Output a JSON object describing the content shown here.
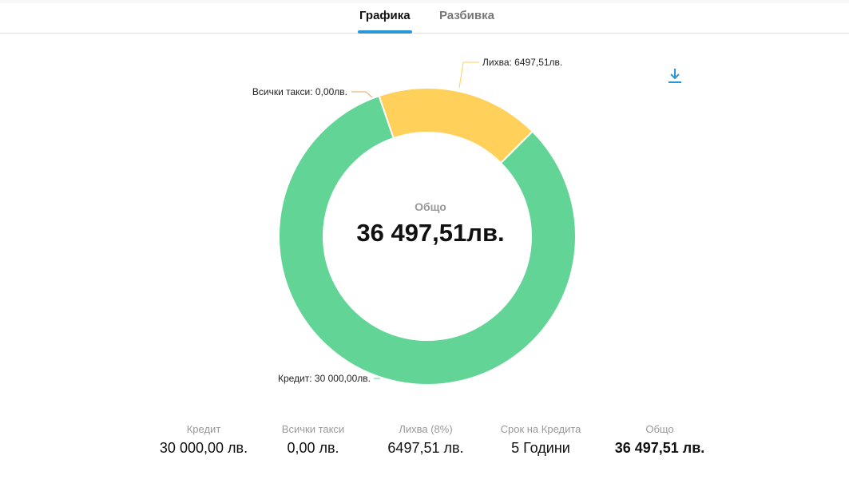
{
  "tabs": [
    {
      "label": "Графика",
      "active": true
    },
    {
      "label": "Разбивка",
      "active": false
    }
  ],
  "download_icon": "download-icon",
  "chart_data": {
    "type": "pie",
    "donut": true,
    "center_label": "Общо",
    "center_value": "36 497,51лв.",
    "slices": [
      {
        "name": "Кредит",
        "value": 30000.0,
        "label": "Кредит: 30 000,00лв.",
        "color": "#62d596"
      },
      {
        "name": "Всички такси",
        "value": 0.0,
        "label": "Всички такси: 0,00лв.",
        "color": "#e8a35c"
      },
      {
        "name": "Лихва",
        "value": 6497.51,
        "label": "Лихва: 6497,51лв.",
        "color": "#ffd05a"
      }
    ]
  },
  "summary": [
    {
      "label": "Кредит",
      "value": "30 000,00 лв."
    },
    {
      "label": "Всички такси",
      "value": "0,00 лв."
    },
    {
      "label": "Лихва (8%)",
      "value": "6497,51 лв."
    },
    {
      "label": "Срок на Кредита",
      "value": "5 Години"
    },
    {
      "label": "Общо",
      "value": "36 497,51 лв.",
      "bold": true
    }
  ]
}
